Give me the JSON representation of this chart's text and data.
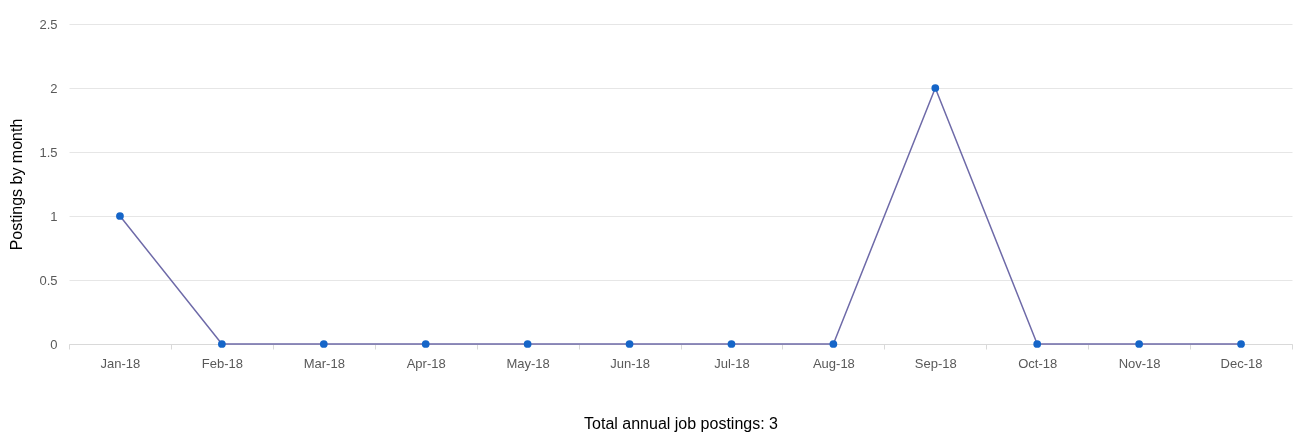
{
  "chart_data": {
    "type": "line",
    "xlabel": "Total annual job postings: 3",
    "ylabel": "Postings by month",
    "categories": [
      "Jan-18",
      "Feb-18",
      "Mar-18",
      "Apr-18",
      "May-18",
      "Jun-18",
      "Jul-18",
      "Aug-18",
      "Sep-18",
      "Oct-18",
      "Nov-18",
      "Dec-18"
    ],
    "series": [
      {
        "color": "#6e6aa8",
        "values": [
          1,
          0,
          0,
          0,
          0,
          0,
          0,
          0,
          2,
          0,
          0,
          0
        ]
      }
    ],
    "ylim": [
      0,
      2.5
    ],
    "yticks": [
      0,
      0.5,
      1,
      1.5,
      2,
      2.5
    ],
    "grid": "y",
    "marker": "circle",
    "line_style": "solid"
  }
}
